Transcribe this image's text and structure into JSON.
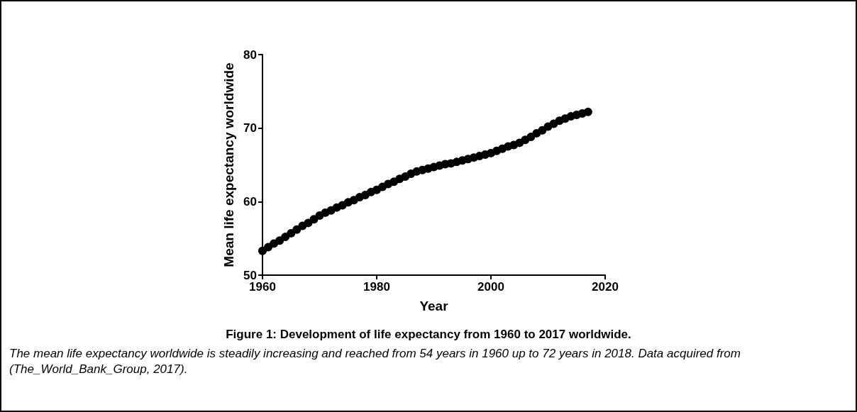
{
  "chart_data": {
    "type": "scatter",
    "title": "Figure 1: Development of life expectancy from 1960 to 2017 worldwide.",
    "xlabel": "Year",
    "ylabel": "Mean life expectancy worldwide",
    "annotations": [
      "The mean life expectancy worldwide is steadily increasing and reached from 54 years in 1960 up to 72 years in 2018. Data acquired from (The_World_Bank_Group, 2017)."
    ],
    "x": [
      1960,
      1961,
      1962,
      1963,
      1964,
      1965,
      1966,
      1967,
      1968,
      1969,
      1970,
      1971,
      1972,
      1973,
      1974,
      1975,
      1976,
      1977,
      1978,
      1979,
      1980,
      1981,
      1982,
      1983,
      1984,
      1985,
      1986,
      1987,
      1988,
      1989,
      1990,
      1991,
      1992,
      1993,
      1994,
      1995,
      1996,
      1997,
      1998,
      1999,
      2000,
      2001,
      2002,
      2003,
      2004,
      2005,
      2006,
      2007,
      2008,
      2009,
      2010,
      2011,
      2012,
      2013,
      2014,
      2015,
      2016,
      2017
    ],
    "values": [
      53.3,
      53.8,
      54.3,
      54.7,
      55.2,
      55.7,
      56.2,
      56.7,
      57.1,
      57.6,
      58.1,
      58.5,
      58.8,
      59.2,
      59.5,
      59.9,
      60.2,
      60.6,
      60.9,
      61.3,
      61.6,
      62.0,
      62.4,
      62.7,
      63.1,
      63.4,
      63.8,
      64.1,
      64.3,
      64.5,
      64.7,
      64.9,
      65.1,
      65.2,
      65.4,
      65.6,
      65.8,
      66.0,
      66.2,
      66.4,
      66.6,
      66.9,
      67.2,
      67.5,
      67.7,
      68.0,
      68.4,
      68.8,
      69.3,
      69.7,
      70.2,
      70.6,
      71.0,
      71.3,
      71.6,
      71.8,
      72.0,
      72.2
    ],
    "color": "#000000",
    "marker": "circle",
    "xlim": [
      1960,
      2020
    ],
    "xticks": [
      1960,
      1980,
      2000,
      2020
    ],
    "ylim": [
      50,
      80
    ],
    "yticks": [
      50,
      60,
      70,
      80
    ],
    "grid": false
  }
}
